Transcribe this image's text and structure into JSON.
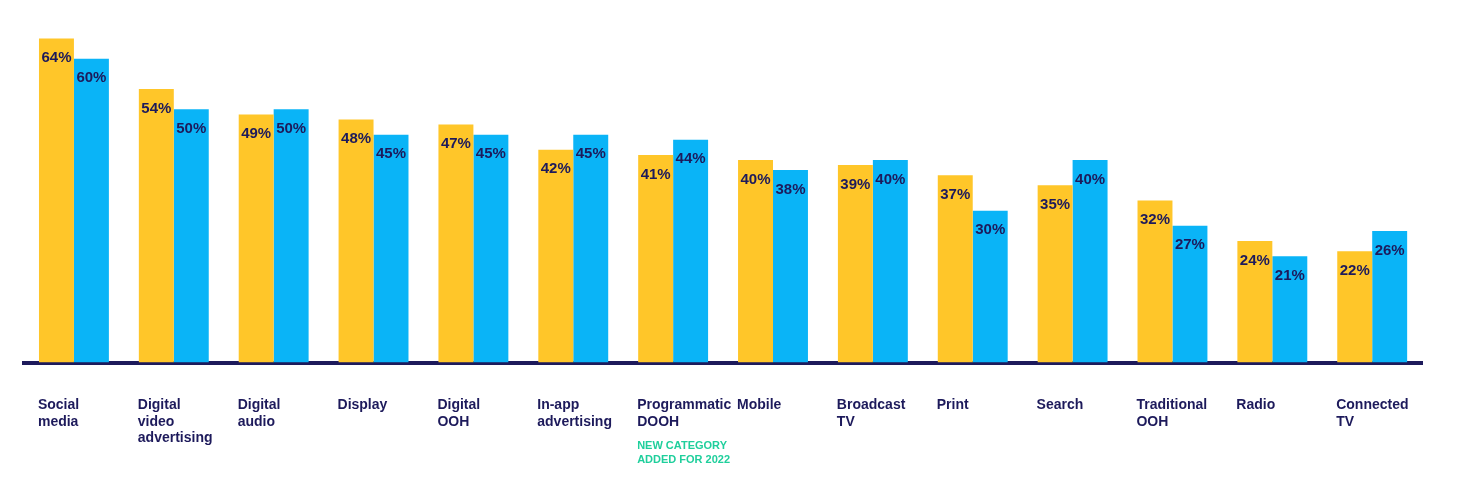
{
  "chart_data": {
    "type": "bar",
    "categories": [
      "Social media",
      "Digital video advertising",
      "Digital audio",
      "Display",
      "Digital OOH",
      "In-app advertising",
      "Programmatic DOOH",
      "Mobile",
      "Broadcast TV",
      "Print",
      "Search",
      "Traditional OOH",
      "Radio",
      "Connected TV"
    ],
    "series": [
      {
        "color": "#ffc629",
        "values": [
          64,
          54,
          49,
          48,
          47,
          42,
          41,
          40,
          39,
          37,
          35,
          32,
          24,
          22
        ],
        "value_labels": [
          "64%",
          "54%",
          "49%",
          "48%",
          "47%",
          "42%",
          "41%",
          "40%",
          "39%",
          "37%",
          "35%",
          "32%",
          "24%",
          "22%"
        ]
      },
      {
        "color": "#0ab4f7",
        "values": [
          60,
          50,
          50,
          45,
          45,
          45,
          44,
          38,
          40,
          30,
          40,
          27,
          21,
          26
        ],
        "value_labels": [
          "60%",
          "50%",
          "50%",
          "45%",
          "45%",
          "45%",
          "44%",
          "38%",
          "40%",
          "30%",
          "40%",
          "27%",
          "21%",
          "26%"
        ]
      }
    ],
    "annotations": [
      "NEW CATEGORY ADDED FOR 2022"
    ],
    "grid": false,
    "legend": false
  }
}
